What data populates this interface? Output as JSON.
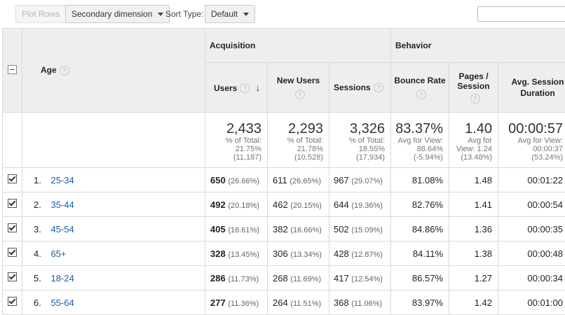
{
  "toolbar": {
    "plot_rows": "Plot Rows",
    "secondary_dimension": "Secondary dimension",
    "sort_type_label": "Sort Type:",
    "sort_type_value": "Default"
  },
  "table": {
    "groups": {
      "acquisition": "Acquisition",
      "behavior": "Behavior"
    },
    "headers": {
      "age": "Age",
      "users": "Users",
      "new_users": "New Users",
      "sessions": "Sessions",
      "bounce_rate": "Bounce Rate",
      "pages_session": "Pages / Session",
      "avg_session_duration": "Avg. Session Duration"
    },
    "totals": {
      "users": {
        "value": "2,433",
        "l1": "% of Total:",
        "l2": "21.75%",
        "l3": "(11,187)"
      },
      "new_users": {
        "value": "2,293",
        "l1": "% of Total:",
        "l2": "21.78%",
        "l3": "(10,528)"
      },
      "sessions": {
        "value": "3,326",
        "l1": "% of Total:",
        "l2": "18.55%",
        "l3": "(17,934)"
      },
      "bounce_rate": {
        "value": "83.37%",
        "l1": "Avg for View:",
        "l2": "88.64%",
        "l3": "(-5.94%)"
      },
      "pages_session": {
        "value": "1.40",
        "l1": "Avg for",
        "l2": "View: 1.24",
        "l3": "(13.48%)"
      },
      "avg_session_duration": {
        "value": "00:00:57",
        "l1": "Avg for View:",
        "l2": "00:00:37",
        "l3": "(53.24%)"
      }
    },
    "rows": [
      {
        "index": "1.",
        "age": "25-34",
        "users": "650",
        "users_pct": "(26.66%)",
        "new_users": "611",
        "new_users_pct": "(26.65%)",
        "sessions": "967",
        "sessions_pct": "(29.07%)",
        "bounce": "81.08%",
        "pages": "1.48",
        "duration": "00:01:22"
      },
      {
        "index": "2.",
        "age": "35-44",
        "users": "492",
        "users_pct": "(20.18%)",
        "new_users": "462",
        "new_users_pct": "(20.15%)",
        "sessions": "644",
        "sessions_pct": "(19.36%)",
        "bounce": "82.76%",
        "pages": "1.41",
        "duration": "00:00:54"
      },
      {
        "index": "3.",
        "age": "45-54",
        "users": "405",
        "users_pct": "(16.61%)",
        "new_users": "382",
        "new_users_pct": "(16.66%)",
        "sessions": "502",
        "sessions_pct": "(15.09%)",
        "bounce": "84.86%",
        "pages": "1.36",
        "duration": "00:00:35"
      },
      {
        "index": "4.",
        "age": "65+",
        "users": "328",
        "users_pct": "(13.45%)",
        "new_users": "306",
        "new_users_pct": "(13.34%)",
        "sessions": "428",
        "sessions_pct": "(12.87%)",
        "bounce": "84.11%",
        "pages": "1.38",
        "duration": "00:00:48"
      },
      {
        "index": "5.",
        "age": "18-24",
        "users": "286",
        "users_pct": "(11.73%)",
        "new_users": "268",
        "new_users_pct": "(11.69%)",
        "sessions": "417",
        "sessions_pct": "(12.54%)",
        "bounce": "86.57%",
        "pages": "1.27",
        "duration": "00:00:34"
      },
      {
        "index": "6.",
        "age": "55-64",
        "users": "277",
        "users_pct": "(11.36%)",
        "new_users": "264",
        "new_users_pct": "(11.51%)",
        "sessions": "368",
        "sessions_pct": "(11.06%)",
        "bounce": "83.97%",
        "pages": "1.42",
        "duration": "00:01:00"
      }
    ]
  }
}
